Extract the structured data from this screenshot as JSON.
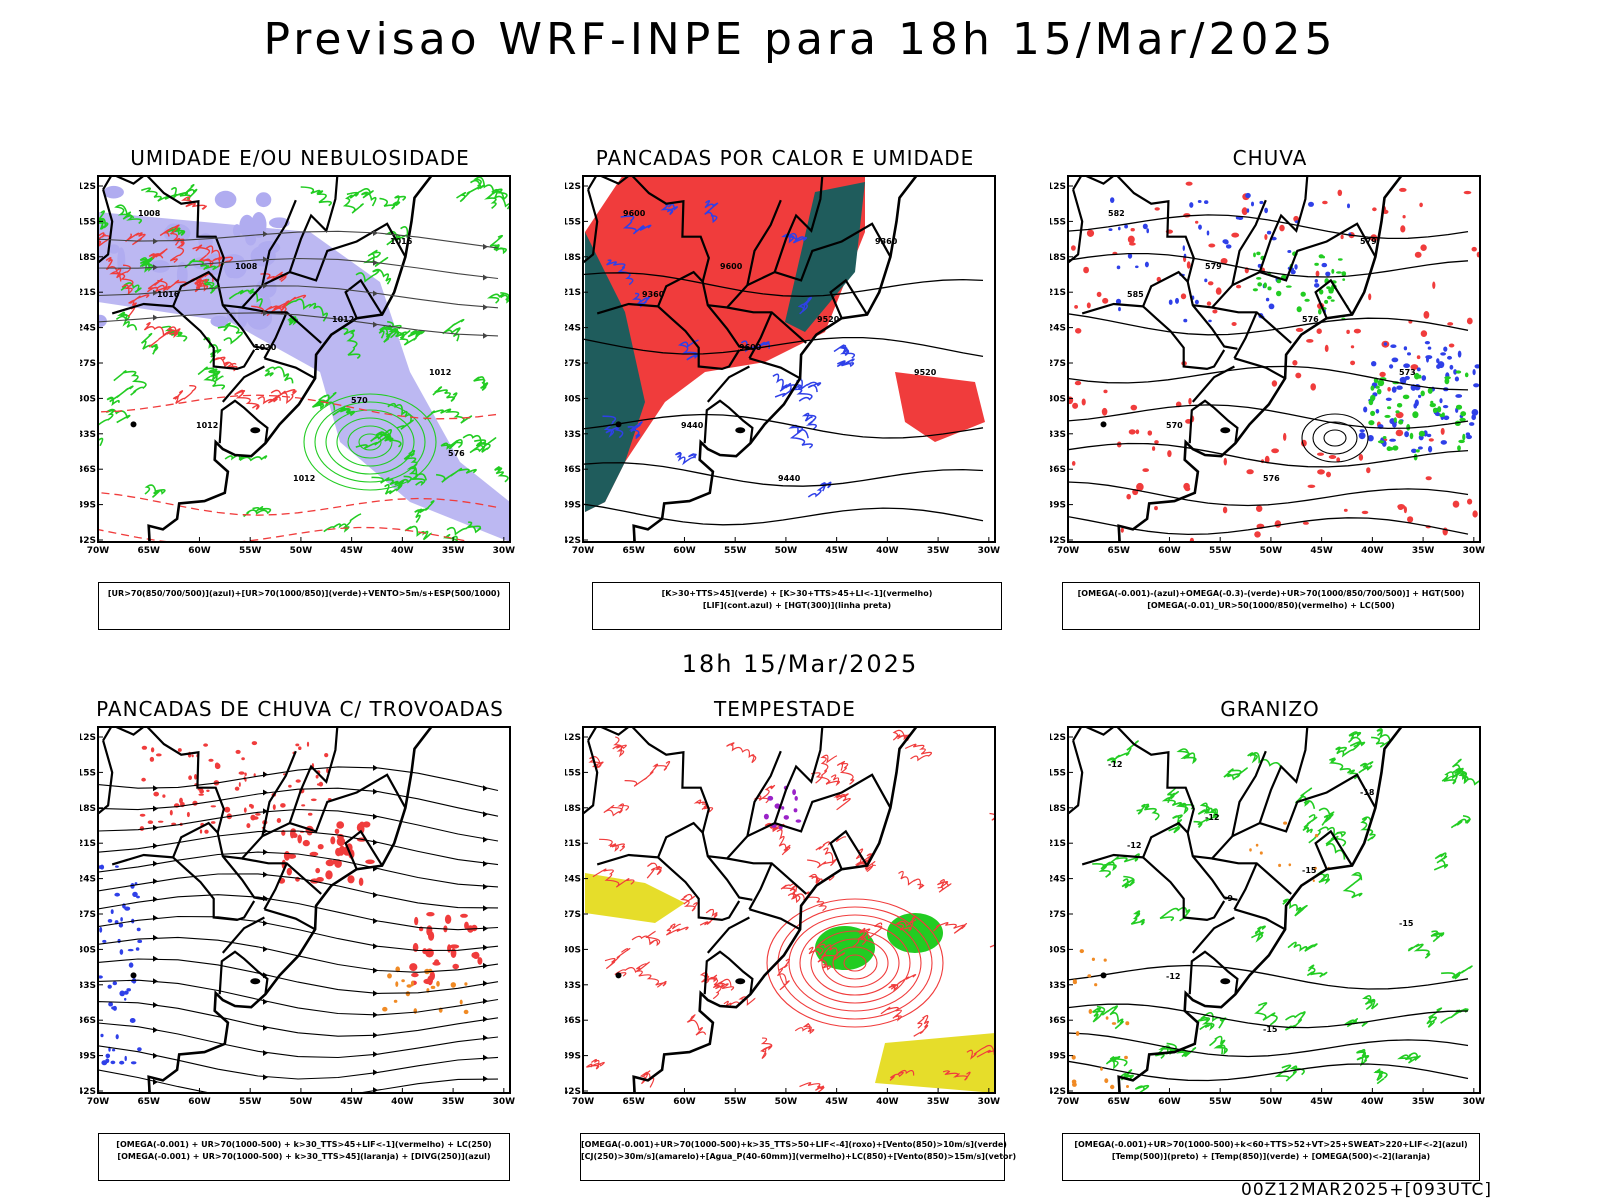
{
  "title": "Previsao WRF-INPE  para 18h 15/Mar/2025",
  "mid_title": "18h 15/Mar/2025",
  "footer": "00Z12MAR2025+[093UTC]",
  "axes": {
    "lat_labels": [
      "12S",
      "15S",
      "18S",
      "21S",
      "24S",
      "27S",
      "30S",
      "33S",
      "36S",
      "39S",
      "42S"
    ],
    "lon_labels": [
      "70W",
      "65W",
      "60W",
      "55W",
      "50W",
      "45W",
      "40W",
      "35W",
      "30W"
    ]
  },
  "colors": {
    "blue": "#2f40e8",
    "green": "#22cc22",
    "red": "#f03c3c",
    "darkgreen": "#1f5c5c",
    "lavender": "#b0acf0",
    "yellow": "#e6dd2a",
    "orange": "#f08a24",
    "purple": "#9a22c8"
  },
  "panels": [
    {
      "title": "UMIDADE E/OU NEBULOSIDADE",
      "legend": [
        "[UR>70(850/700/500)](azul)+[UR>70(1000/850)](verde)+VENTO>5m/s+ESP(500/1000)"
      ],
      "contour_labels": [
        "1008",
        "1008",
        "1012",
        "1012",
        "1012",
        "1012",
        "1016",
        "1016",
        "1020",
        "570",
        "576"
      ]
    },
    {
      "title": "PANCADAS POR CALOR E UMIDADE",
      "legend": [
        "[K>30+TTS>45](verde) + [K>30+TTS>45+LI<-1](vermelho)",
        "[LIF](cont.azul) + [HGT(300)](linha preta)"
      ],
      "contour_labels": [
        "9600",
        "9600",
        "9520",
        "9520",
        "9440",
        "9440",
        "9360",
        "9360",
        "9600"
      ]
    },
    {
      "title": "CHUVA",
      "legend": [
        "[OMEGA(-0.001)-(azul)+OMEGA(-0.3)-(verde)+UR>70(1000/850/700/500)] + HGT(500)",
        "[OMEGA(-0.01)_UR>50(1000/850)(vermelho) + LC(500)"
      ],
      "contour_labels": [
        "582",
        "579",
        "576",
        "573",
        "570",
        "576",
        "579",
        "585"
      ]
    },
    {
      "title": "PANCADAS DE CHUVA C/ TROVOADAS",
      "legend": [
        "[OMEGA(-0.001) + UR>70(1000-500) + k>30_TTS>45+LIF<-1](vermelho) + LC(250)",
        "[OMEGA(-0.001) + UR>70(1000-500) + k>30_TTS>45](laranja) + [DIVG(250)](azul)"
      ],
      "contour_labels": []
    },
    {
      "title": "TEMPESTADE",
      "legend": [
        "[OMEGA(-0.001)+UR>70(1000-500)+k>35_TTS>50+LIF<-4](roxo)+[Vento(850)>10m/s](verde)",
        "[CJ(250)>30m/s](amarelo)+[Agua_P(40-60mm)](vermelho)+LC(850)+[Vento(850)>15m/s](vetor)"
      ],
      "contour_labels": []
    },
    {
      "title": "GRANIZO",
      "legend": [
        "[OMEGA(-0.001)+UR>70(1000-500)+k<60+TTS>52+VT>25+SWEAT>220+LIF<-2](azul)",
        "[Temp(500)](preto) + [Temp(850)](verde) + [OMEGA(500)<-2](laranja)"
      ],
      "contour_labels": [
        "-12",
        "-12",
        "-15",
        "-15",
        "-12",
        "-15",
        "-18",
        "-12",
        "-9"
      ]
    }
  ]
}
